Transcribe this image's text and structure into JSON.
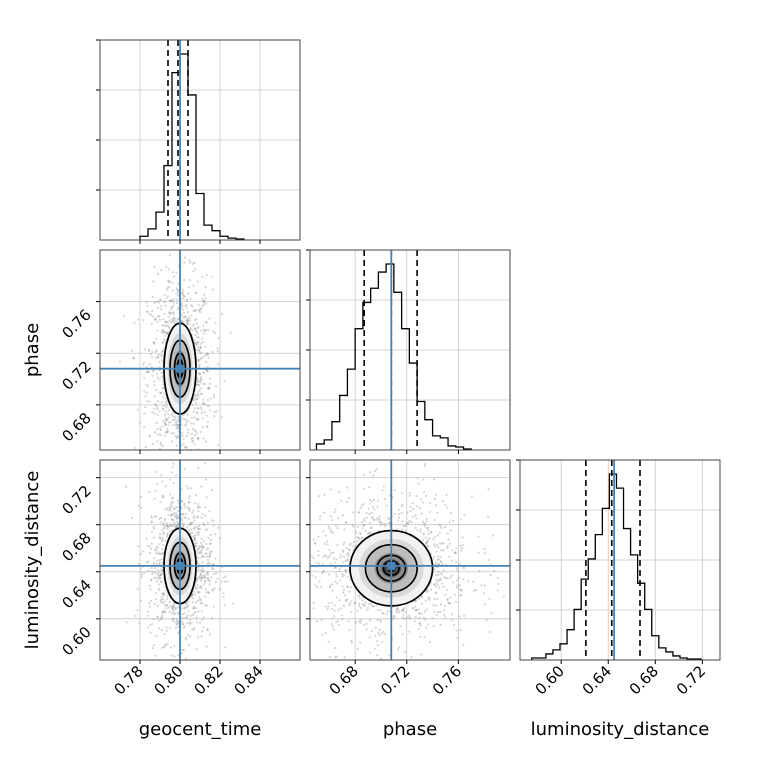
{
  "chart_data": {
    "type": "corner",
    "parameters": [
      {
        "name": "geocent_time",
        "label": "geocent_time",
        "truth": 0.8,
        "quantiles": [
          0.794,
          0.799,
          0.804
        ],
        "ticks": [
          "0.78",
          "0.80",
          "0.82",
          "0.84"
        ],
        "range": [
          0.76,
          0.86
        ]
      },
      {
        "name": "phase",
        "label": "phase",
        "truth": 0.708,
        "quantiles": [
          0.687,
          0.708,
          0.728
        ],
        "ticks": [
          "0.68",
          "0.72",
          "0.76"
        ],
        "range": [
          0.645,
          0.8
        ]
      },
      {
        "name": "luminosity_distance",
        "label": "luminosity_distance",
        "truth": 0.645,
        "quantiles": [
          0.621,
          0.643,
          0.667
        ],
        "ticks": [
          "0.60",
          "0.64",
          "0.68",
          "0.72"
        ],
        "range": [
          0.565,
          0.735
        ]
      }
    ],
    "histograms": {
      "geocent_time": {
        "edges": [
          0.78,
          0.784,
          0.788,
          0.792,
          0.796,
          0.8,
          0.804,
          0.808,
          0.812,
          0.816,
          0.82,
          0.824,
          0.828,
          0.832
        ],
        "counts": [
          0.02,
          0.06,
          0.15,
          0.4,
          0.9,
          1.0,
          0.78,
          0.25,
          0.08,
          0.05,
          0.02,
          0.01,
          0.005
        ]
      },
      "phase": {
        "edges": [
          0.65,
          0.656,
          0.662,
          0.668,
          0.674,
          0.68,
          0.686,
          0.692,
          0.698,
          0.704,
          0.71,
          0.716,
          0.722,
          0.728,
          0.734,
          0.74,
          0.746,
          0.752,
          0.758,
          0.764,
          0.77
        ],
        "counts": [
          0.03,
          0.05,
          0.14,
          0.27,
          0.4,
          0.6,
          0.73,
          0.8,
          0.88,
          0.92,
          0.78,
          0.6,
          0.43,
          0.24,
          0.15,
          0.07,
          0.06,
          0.02,
          0.015,
          0.005
        ]
      },
      "luminosity_distance": {
        "edges": [
          0.575,
          0.581,
          0.587,
          0.593,
          0.599,
          0.605,
          0.611,
          0.617,
          0.623,
          0.629,
          0.635,
          0.641,
          0.647,
          0.653,
          0.659,
          0.665,
          0.671,
          0.677,
          0.683,
          0.689,
          0.695,
          0.701,
          0.707,
          0.713,
          0.719
        ],
        "counts": [
          0.01,
          0.01,
          0.03,
          0.05,
          0.08,
          0.15,
          0.25,
          0.4,
          0.5,
          0.62,
          0.75,
          0.92,
          0.85,
          0.65,
          0.52,
          0.38,
          0.25,
          0.12,
          0.06,
          0.04,
          0.02,
          0.01,
          0.005,
          0.005
        ]
      }
    },
    "pairs": [
      {
        "x": "geocent_time",
        "y": "phase",
        "center": [
          0.8,
          0.708
        ],
        "sigma": [
          0.005,
          0.022
        ],
        "outer_levels": [
          1.0,
          1.6
        ]
      },
      {
        "x": "geocent_time",
        "y": "luminosity_distance",
        "center": [
          0.8,
          0.645
        ],
        "sigma": [
          0.005,
          0.02
        ],
        "outer_levels": [
          1.0,
          1.6
        ]
      },
      {
        "x": "phase",
        "y": "luminosity_distance",
        "center": [
          0.708,
          0.643
        ],
        "sigma": [
          0.02,
          0.02
        ],
        "outer_levels": [
          1.0,
          1.6
        ]
      }
    ],
    "truth_color": "#4682b4",
    "line_color": "#000000",
    "grid": true
  }
}
